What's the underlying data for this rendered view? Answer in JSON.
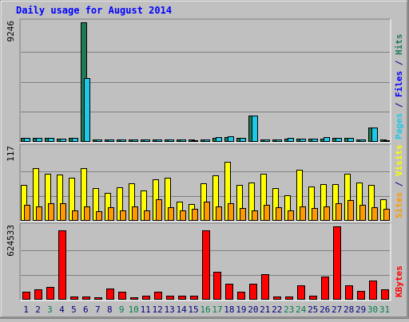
{
  "chart_data": {
    "type": "bar",
    "title": "Daily usage for August 2014",
    "categories": [
      "1",
      "2",
      "3",
      "4",
      "5",
      "6",
      "7",
      "8",
      "9",
      "10",
      "11",
      "12",
      "13",
      "14",
      "15",
      "16",
      "17",
      "18",
      "19",
      "20",
      "21",
      "22",
      "23",
      "24",
      "25",
      "26",
      "27",
      "28",
      "29",
      "30",
      "31"
    ],
    "weekend_days": [
      3,
      9,
      10,
      16,
      17,
      23,
      24,
      30,
      31
    ],
    "colors": {
      "hits": "#1f7a56",
      "files": "#1ec8e8",
      "pages": "#1ec8e8",
      "visits": "#ffff00",
      "sites": "#ff9900",
      "kbytes": "#ff0000",
      "title": "#0000ff",
      "day_label": "#000080",
      "weekend_label": "#00804a"
    },
    "panels": [
      {
        "id": "hits",
        "max_label": "9246",
        "ymax": 9246,
        "series": [
          {
            "name": "Hits",
            "color": "#1f7a56",
            "values": [
              250,
              250,
              230,
              200,
              240,
              9246,
              120,
              120,
              120,
              120,
              120,
              120,
              120,
              120,
              120,
              120,
              250,
              300,
              240,
              2000,
              140,
              130,
              200,
              200,
              200,
              180,
              250,
              250,
              150,
              1050,
              120
            ]
          },
          {
            "name": "Files",
            "color": "#1ec8e8",
            "values": [
              250,
              250,
              230,
              200,
              240,
              4900,
              120,
              120,
              120,
              120,
              120,
              120,
              120,
              120,
              60,
              120,
              300,
              400,
              240,
              2000,
              140,
              130,
              240,
              200,
              200,
              300,
              250,
              250,
              150,
              1050,
              60
            ]
          }
        ],
        "legend": [
          {
            "text": "Pages",
            "color": "#1ec8e8"
          },
          {
            "text": " / ",
            "color": "#000080"
          },
          {
            "text": "Files",
            "color": "#0000ff"
          },
          {
            "text": " / ",
            "color": "#000080"
          },
          {
            "text": "Hits",
            "color": "#1f7a56"
          }
        ]
      },
      {
        "id": "visits",
        "max_label": "117",
        "ymax": 117,
        "series": [
          {
            "name": "Visits",
            "color": "#ffff00",
            "values": [
              57,
              83,
              75,
              73,
              68,
              83,
              52,
              44,
              53,
              59,
              47,
              66,
              68,
              29,
              26,
              59,
              72,
              94,
              56,
              61,
              74,
              51,
              40,
              81,
              54,
              58,
              58,
              75,
              60,
              56,
              33
            ]
          },
          {
            "name": "Sites",
            "color": "#ff9900",
            "values": [
              24,
              22,
              27,
              27,
              16,
              22,
              14,
              20,
              16,
              22,
              16,
              34,
              20,
              16,
              18,
              29,
              22,
              27,
              19,
              16,
              25,
              20,
              16,
              22,
              19,
              22,
              27,
              32,
              25,
              20,
              18
            ]
          }
        ],
        "legend": [
          {
            "text": "Sites",
            "color": "#ff9900"
          },
          {
            "text": " / ",
            "color": "#000080"
          },
          {
            "text": "Visits",
            "color": "#ffff00"
          }
        ]
      },
      {
        "id": "kbytes",
        "max_label": "624533",
        "ymax": 624533,
        "series": [
          {
            "name": "KBytes",
            "color": "#ff0000",
            "values": [
              60000,
              80000,
              100000,
              590000,
              20000,
              20000,
              15000,
              90000,
              60000,
              15000,
              30000,
              60000,
              30000,
              30000,
              30000,
              590000,
              230000,
              130000,
              60000,
              130000,
              210000,
              20000,
              20000,
              120000,
              30000,
              190000,
              640000,
              120000,
              70000,
              160000,
              80000
            ]
          }
        ],
        "legend": [
          {
            "text": "KBytes",
            "color": "#ff0000"
          }
        ]
      }
    ]
  }
}
